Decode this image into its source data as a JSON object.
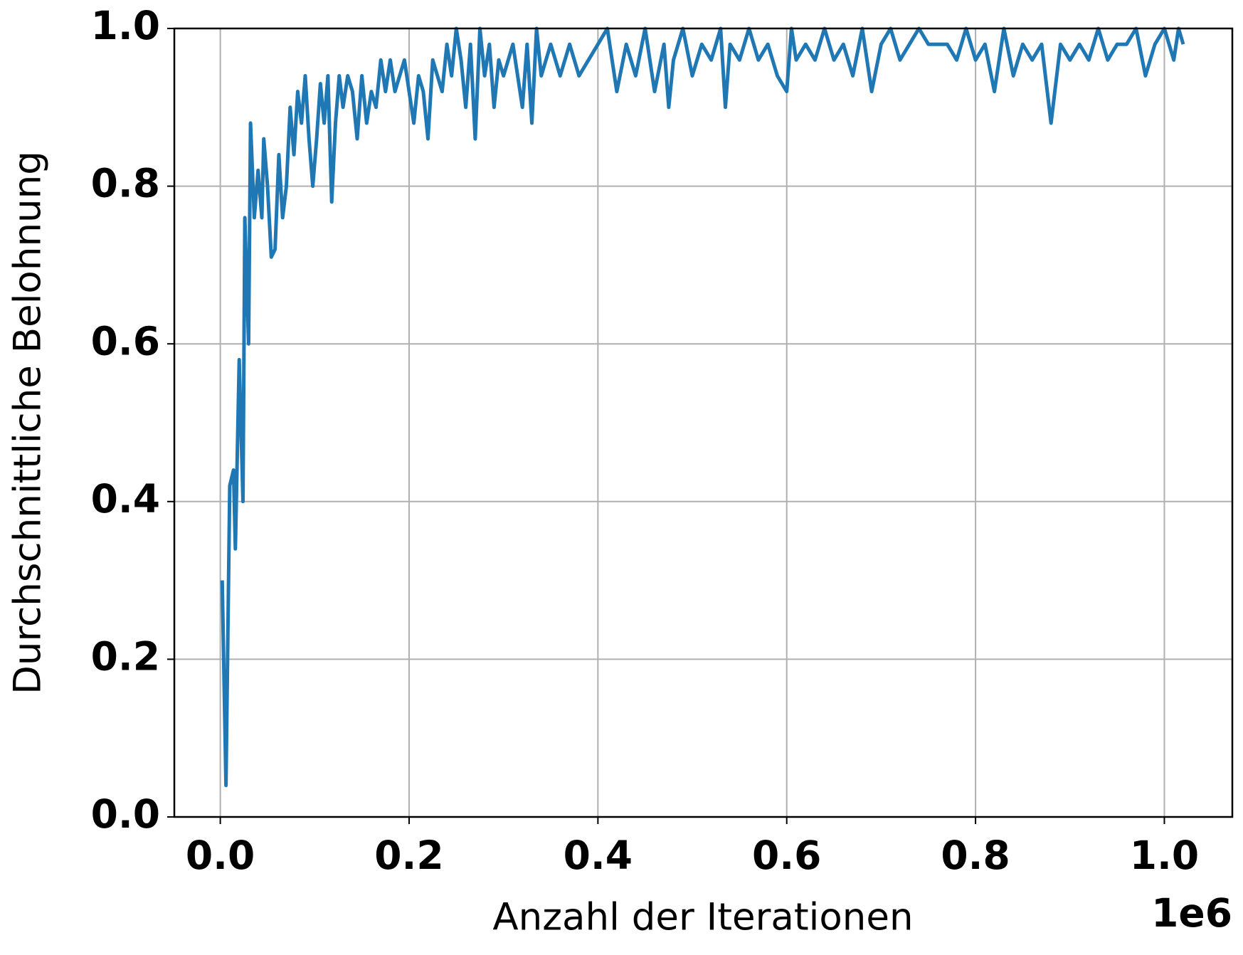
{
  "chart_data": {
    "type": "line",
    "xlabel": "Anzahl der Iterationen",
    "ylabel": "Durchschnittliche Belohnung",
    "x_offset_label": "1e6",
    "xlim": [
      -48700,
      1072000
    ],
    "ylim": [
      0,
      1
    ],
    "xticks": [
      {
        "value": 0,
        "label": "0.0"
      },
      {
        "value": 200000,
        "label": "0.2"
      },
      {
        "value": 400000,
        "label": "0.4"
      },
      {
        "value": 600000,
        "label": "0.6"
      },
      {
        "value": 800000,
        "label": "0.8"
      },
      {
        "value": 1000000,
        "label": "1.0"
      }
    ],
    "yticks": [
      {
        "value": 0,
        "label": "0.0"
      },
      0.2,
      0.4,
      0.6,
      0.8,
      {
        "value": 1,
        "label": "1.0"
      }
    ],
    "grid": true,
    "series": [
      {
        "color": "#1f77b4",
        "x": [
          2000,
          6000,
          10000,
          14000,
          16000,
          20000,
          24000,
          26000,
          30000,
          32000,
          36000,
          40000,
          44000,
          46000,
          50000,
          54000,
          58000,
          62000,
          66000,
          70000,
          74000,
          78000,
          82000,
          86000,
          90000,
          94000,
          98000,
          102000,
          106000,
          110000,
          114000,
          118000,
          122000,
          126000,
          130000,
          135000,
          140000,
          145000,
          150000,
          155000,
          160000,
          165000,
          170000,
          175000,
          180000,
          185000,
          190000,
          195000,
          200000,
          205000,
          210000,
          215000,
          220000,
          225000,
          230000,
          235000,
          240000,
          245000,
          250000,
          255000,
          260000,
          265000,
          270000,
          275000,
          280000,
          285000,
          290000,
          295000,
          300000,
          310000,
          320000,
          325000,
          330000,
          335000,
          340000,
          350000,
          360000,
          370000,
          380000,
          390000,
          400000,
          410000,
          420000,
          430000,
          440000,
          450000,
          460000,
          470000,
          475000,
          480000,
          490000,
          500000,
          510000,
          520000,
          530000,
          535000,
          540000,
          550000,
          560000,
          570000,
          580000,
          590000,
          600000,
          605000,
          610000,
          620000,
          630000,
          640000,
          650000,
          660000,
          670000,
          680000,
          690000,
          700000,
          710000,
          720000,
          730000,
          740000,
          750000,
          760000,
          770000,
          780000,
          790000,
          800000,
          810000,
          820000,
          830000,
          840000,
          850000,
          860000,
          870000,
          880000,
          890000,
          900000,
          910000,
          920000,
          930000,
          940000,
          950000,
          960000,
          970000,
          980000,
          990000,
          1000000,
          1010000,
          1015000,
          1020000
        ],
        "values": [
          0.3,
          0.04,
          0.42,
          0.44,
          0.34,
          0.58,
          0.4,
          0.76,
          0.6,
          0.88,
          0.76,
          0.82,
          0.76,
          0.86,
          0.8,
          0.71,
          0.72,
          0.84,
          0.76,
          0.8,
          0.9,
          0.84,
          0.92,
          0.88,
          0.94,
          0.86,
          0.8,
          0.86,
          0.93,
          0.88,
          0.94,
          0.78,
          0.88,
          0.94,
          0.9,
          0.94,
          0.92,
          0.86,
          0.94,
          0.88,
          0.92,
          0.9,
          0.96,
          0.92,
          0.96,
          0.92,
          0.94,
          0.96,
          0.92,
          0.88,
          0.94,
          0.92,
          0.86,
          0.96,
          0.94,
          0.92,
          0.98,
          0.94,
          1.0,
          0.96,
          0.9,
          0.98,
          0.86,
          1.0,
          0.94,
          0.98,
          0.9,
          0.96,
          0.94,
          0.98,
          0.9,
          0.98,
          0.88,
          1.0,
          0.94,
          0.98,
          0.94,
          0.98,
          0.94,
          0.96,
          0.98,
          1.0,
          0.92,
          0.98,
          0.94,
          1.0,
          0.92,
          0.98,
          0.9,
          0.96,
          1.0,
          0.94,
          0.98,
          0.96,
          1.0,
          0.9,
          0.98,
          0.96,
          1.0,
          0.96,
          0.98,
          0.94,
          0.92,
          1.0,
          0.96,
          0.98,
          0.96,
          1.0,
          0.96,
          0.98,
          0.94,
          1.0,
          0.92,
          0.98,
          1.0,
          0.96,
          0.98,
          1.0,
          0.98,
          0.98,
          0.98,
          0.96,
          1.0,
          0.96,
          0.98,
          0.92,
          1.0,
          0.94,
          0.98,
          0.96,
          0.98,
          0.88,
          0.98,
          0.96,
          0.98,
          0.96,
          1.0,
          0.96,
          0.98,
          0.98,
          1.0,
          0.94,
          0.98,
          1.0,
          0.96,
          1.0,
          0.98
        ]
      }
    ]
  }
}
